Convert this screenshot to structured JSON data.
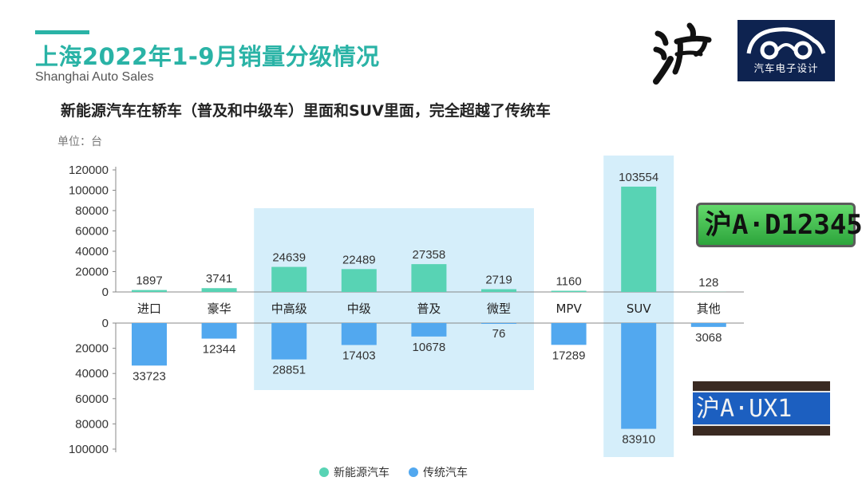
{
  "header": {
    "title": "上海2022年1-9月销量分级情况",
    "subtitle": "Shanghai Auto Sales",
    "headline": "新能源汽车在轿车（普及和中级车）里面和SUV里面，完全超越了传统车",
    "unit": "单位：台"
  },
  "brand": {
    "text": "汽车电子设计",
    "calligraphy": "沪"
  },
  "plates": {
    "green": "沪A·D12345",
    "blue": "沪A·UX1"
  },
  "colors": {
    "accent": "#2ab3a6",
    "nev": "#58d3b4",
    "traditional": "#52a8ef",
    "highlight": "#d5eefa"
  },
  "chart_data": {
    "type": "bar",
    "categories": [
      "进口",
      "豪华",
      "中高级",
      "中级",
      "普及",
      "微型",
      "MPV",
      "SUV",
      "其他"
    ],
    "series": [
      {
        "name": "新能源汽车",
        "values": [
          1897,
          3741,
          24639,
          22489,
          27358,
          2719,
          1160,
          103554,
          128
        ]
      },
      {
        "name": "传统汽车",
        "values": [
          33723,
          12344,
          28851,
          17403,
          10678,
          76,
          17289,
          83910,
          3068
        ]
      }
    ],
    "upper_axis": {
      "ylim": [
        0,
        120000
      ],
      "ticks": [
        "120000",
        "100000",
        "80000",
        "60000",
        "40000",
        "20000",
        "0"
      ]
    },
    "lower_axis": {
      "ylim": [
        0,
        100000
      ],
      "ticks": [
        "0",
        "20000",
        "40000",
        "60000",
        "80000",
        "100000"
      ]
    },
    "highlighted_categories": [
      "中高级",
      "中级",
      "普及",
      "微型",
      "SUV"
    ],
    "legend": "bottom-center"
  }
}
